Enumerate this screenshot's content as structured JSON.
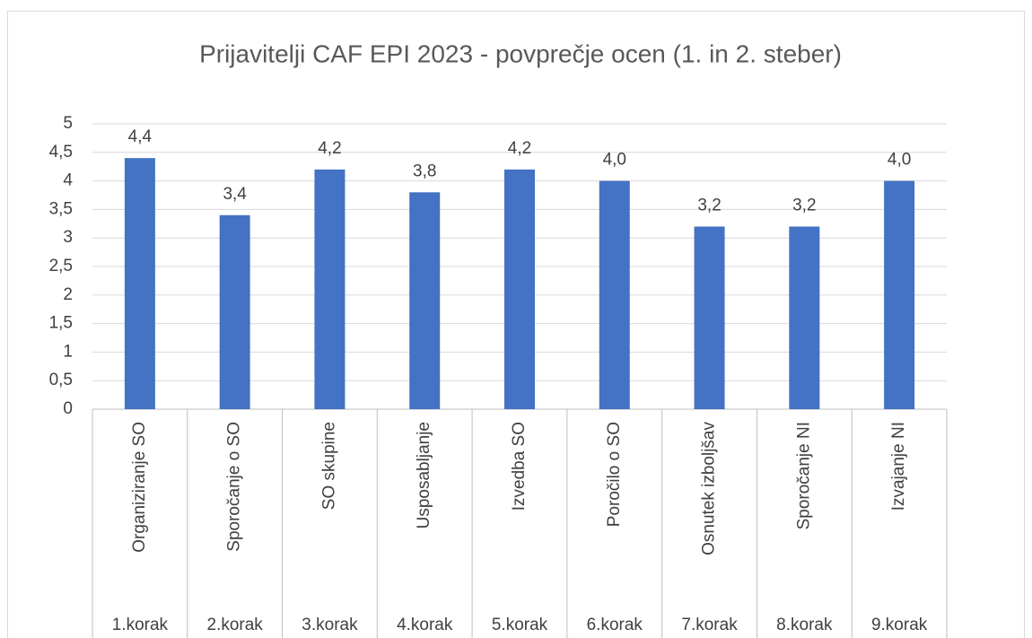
{
  "chart_data": {
    "type": "bar",
    "title": "Prijavitelji CAF EPI 2023 - povprečje ocen (1. in 2. steber)",
    "categories": [
      "Organiziranje SO",
      "Sporočanje o SO",
      "SO skupine",
      "Usposabljanje",
      "Izvedba SO",
      "Poročilo o SO",
      "Osnutek izboljšav",
      "Sporočanje NI",
      "Izvajanje NI"
    ],
    "groups": [
      "1.korak",
      "2.korak",
      "3.korak",
      "4.korak",
      "5.korak",
      "6.korak",
      "7.korak",
      "8.korak",
      "9.korak"
    ],
    "values": [
      4.4,
      3.4,
      4.2,
      3.8,
      4.2,
      4.0,
      3.2,
      3.2,
      4.0
    ],
    "value_labels": [
      "4,4",
      "3,4",
      "4,2",
      "3,8",
      "4,2",
      "4,0",
      "3,2",
      "3,2",
      "4,0"
    ],
    "color": "#4472c4",
    "ylim": [
      0,
      5
    ],
    "yticks": [
      0,
      {
        "value": 0.5,
        "label": "0,5"
      },
      1,
      {
        "value": 1.5,
        "label": "1,5"
      },
      2,
      {
        "value": 2.5,
        "label": "2,5"
      },
      3,
      {
        "value": 3.5,
        "label": "3,5"
      },
      4,
      {
        "value": 4.5,
        "label": "4,5"
      },
      5
    ],
    "grid": true
  }
}
